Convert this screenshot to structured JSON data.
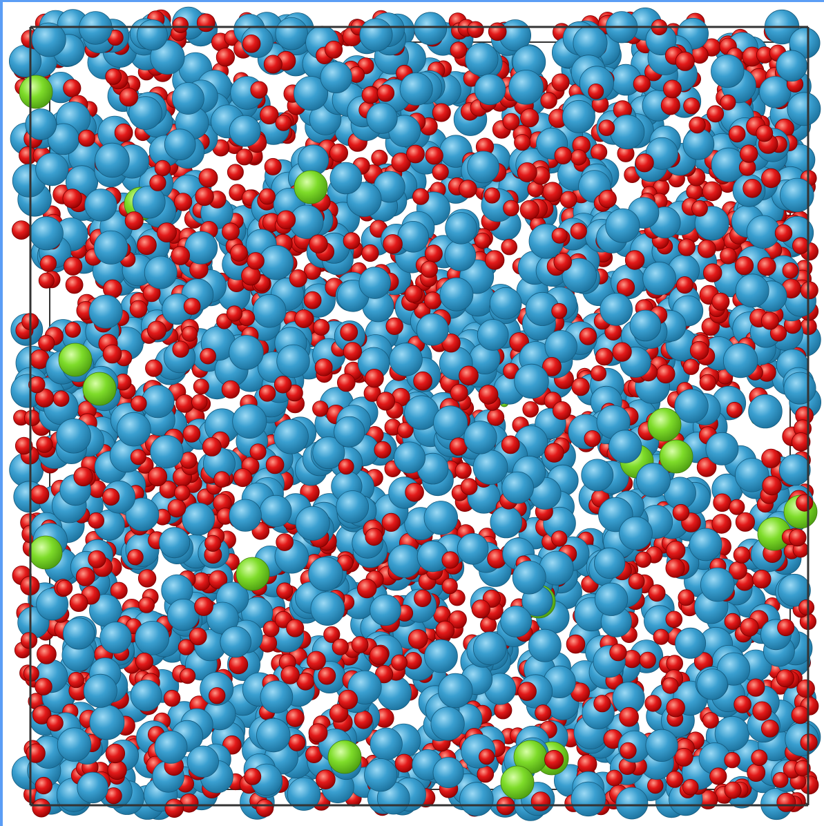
{
  "scene": {
    "background_color": "#ffffff",
    "outline_color": "#5b9df5",
    "box_edge_color": "#333333",
    "species": [
      {
        "key": "large",
        "color": "#3a9fd0",
        "highlight": "#9ddaf5",
        "shadow": "#1a6f9a",
        "count_estimate": 1200
      },
      {
        "key": "small",
        "color": "#e31a1a",
        "highlight": "#ff9a8a",
        "shadow": "#8f0000",
        "count_estimate": 1800
      },
      {
        "key": "green",
        "color": "#7edc2a",
        "highlight": "#d8ffa8",
        "shadow": "#4a9a10",
        "count_estimate": 22
      }
    ]
  }
}
